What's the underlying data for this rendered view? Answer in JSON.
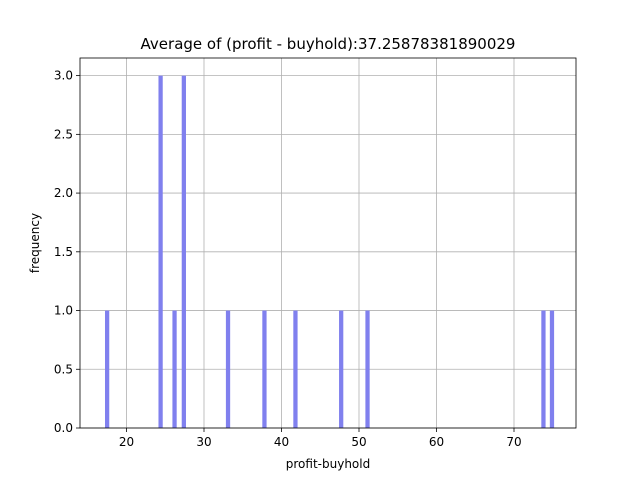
{
  "chart_data": {
    "type": "bar",
    "title": "Average of (profit - buyhold):37.25878381890029",
    "xlabel": "profit-buyhold",
    "ylabel": "frequency",
    "xlim": [
      14.0,
      78.0
    ],
    "ylim": [
      0.0,
      3.15
    ],
    "xticks": [
      "20",
      "30",
      "40",
      "50",
      "60",
      "70"
    ],
    "yticks": [
      "0.0",
      "0.5",
      "1.0",
      "1.5",
      "2.0",
      "2.5",
      "3.0"
    ],
    "grid": true,
    "bar_color": "#8080ee",
    "bin_width": 0.55,
    "bins": [
      {
        "x": 17.5,
        "count": 1
      },
      {
        "x": 24.4,
        "count": 3
      },
      {
        "x": 26.2,
        "count": 1
      },
      {
        "x": 27.4,
        "count": 3
      },
      {
        "x": 33.1,
        "count": 1
      },
      {
        "x": 37.8,
        "count": 1
      },
      {
        "x": 41.8,
        "count": 1
      },
      {
        "x": 47.7,
        "count": 1
      },
      {
        "x": 51.1,
        "count": 1
      },
      {
        "x": 73.8,
        "count": 1
      },
      {
        "x": 74.9,
        "count": 1
      }
    ]
  }
}
